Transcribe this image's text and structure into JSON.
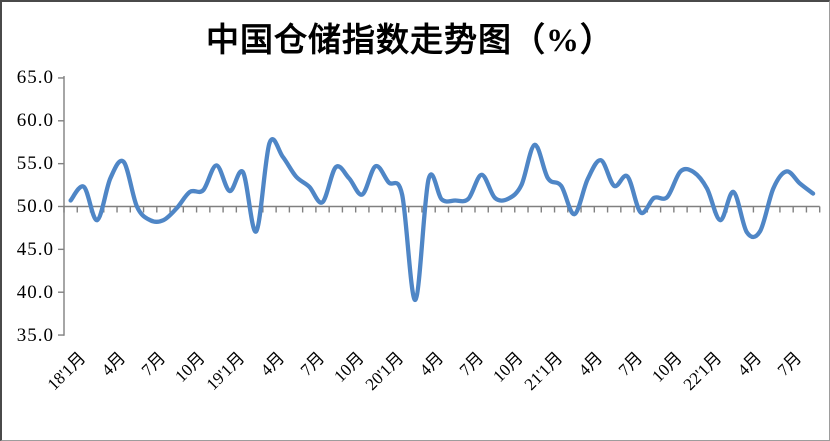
{
  "chart_data": {
    "type": "line",
    "title": "中国仓储指数走势图（%）",
    "xlabel": "",
    "ylabel": "",
    "ylim": [
      35.0,
      65.0
    ],
    "y_tick_step": 5.0,
    "y_tick_labels": [
      "65.0",
      "60.0",
      "55.0",
      "50.0",
      "45.0",
      "40.0",
      "35.0"
    ],
    "x_tick_labels": [
      "18'1月",
      "4月",
      "7月",
      "10月",
      "19'1月",
      "4月",
      "7月",
      "10月",
      "20'1月",
      "4月",
      "7月",
      "10月",
      "21'1月",
      "4月",
      "7月",
      "10月",
      "22'1月",
      "4月",
      "7月"
    ],
    "x_label_every_n_months": 3,
    "axis_crosses_at": 50.0,
    "grid": false,
    "legend_position": "none",
    "line_style": "smooth",
    "series": [
      {
        "name": "中国仓储指数",
        "months": [
          "2018-01",
          "2018-02",
          "2018-03",
          "2018-04",
          "2018-05",
          "2018-06",
          "2018-07",
          "2018-08",
          "2018-09",
          "2018-10",
          "2018-11",
          "2018-12",
          "2019-01",
          "2019-02",
          "2019-03",
          "2019-04",
          "2019-05",
          "2019-06",
          "2019-07",
          "2019-08",
          "2019-09",
          "2019-10",
          "2019-11",
          "2019-12",
          "2020-01",
          "2020-02",
          "2020-03",
          "2020-04",
          "2020-05",
          "2020-06",
          "2020-07",
          "2020-08",
          "2020-09",
          "2020-10",
          "2020-11",
          "2020-12",
          "2021-01",
          "2021-02",
          "2021-03",
          "2021-04",
          "2021-05",
          "2021-06",
          "2021-07",
          "2021-08",
          "2021-09",
          "2021-10",
          "2021-11",
          "2021-12",
          "2022-01",
          "2022-02",
          "2022-03",
          "2022-04",
          "2022-05",
          "2022-06",
          "2022-07",
          "2022-08",
          "2022-09"
        ],
        "values": [
          50.7,
          52.3,
          48.4,
          53.3,
          55.2,
          50.0,
          48.4,
          48.4,
          49.8,
          51.7,
          51.9,
          54.8,
          51.8,
          54.0,
          47.1,
          57.4,
          55.8,
          53.5,
          52.3,
          50.5,
          54.6,
          53.3,
          51.4,
          54.7,
          52.8,
          51.4,
          39.1,
          53.2,
          50.8,
          50.7,
          50.9,
          53.7,
          51.0,
          50.9,
          52.5,
          57.2,
          53.3,
          52.4,
          49.1,
          53.2,
          55.4,
          52.4,
          53.5,
          49.3,
          51.0,
          51.1,
          54.1,
          54.0,
          52.1,
          48.4,
          51.7,
          47.0,
          47.1,
          52.1,
          54.1,
          52.7,
          51.5
        ]
      }
    ],
    "colors": {
      "line": "#4F86C6",
      "axis": "#808080",
      "title_text": "#000000",
      "background": "#FFFFFF"
    }
  }
}
